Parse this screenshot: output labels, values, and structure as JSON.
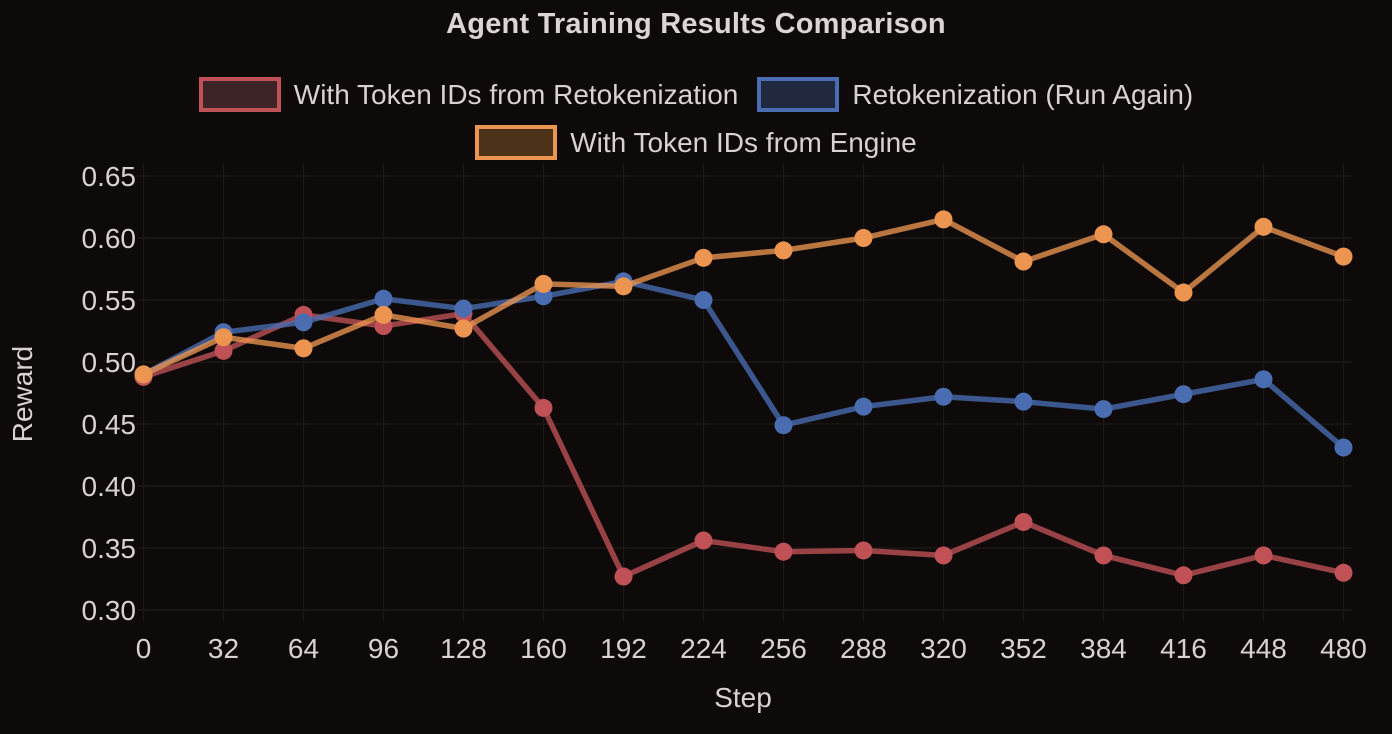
{
  "colors": {
    "background": "#0d0a09",
    "text": "#d8d2d1",
    "grid": "#1b1815",
    "red": "#c05257",
    "blue": "#4a6db2",
    "orange": "#ec9550"
  },
  "chart_data": {
    "type": "line",
    "title": "Agent Training Results Comparison",
    "xlabel": "Step",
    "ylabel": "Reward",
    "grid": true,
    "legend_position": "top",
    "xlim": [
      -8,
      492
    ],
    "ylim": [
      0.29,
      0.66
    ],
    "x": [
      0,
      32,
      64,
      96,
      128,
      160,
      192,
      224,
      256,
      288,
      320,
      352,
      384,
      416,
      448,
      480
    ],
    "y_ticks": [
      0.65,
      0.6,
      0.55,
      0.5,
      0.45,
      0.4,
      0.35,
      0.3
    ],
    "series": [
      {
        "name": "With Token IDs from Retokenization",
        "color": "#c05257",
        "swatch_fill": "#3f2427",
        "values": [
          0.488,
          0.509,
          0.538,
          0.529,
          0.539,
          0.463,
          0.327,
          0.356,
          0.347,
          0.348,
          0.344,
          0.371,
          0.344,
          0.328,
          0.344,
          0.33
        ]
      },
      {
        "name": "Retokenization (Run Again)",
        "color": "#4a6db2",
        "swatch_fill": "#20293f",
        "values": [
          0.49,
          0.524,
          0.532,
          0.551,
          0.543,
          0.553,
          0.565,
          0.55,
          0.449,
          0.464,
          0.472,
          0.468,
          0.462,
          0.474,
          0.486,
          0.431
        ]
      },
      {
        "name": "With Token IDs from Engine",
        "color": "#ec9550",
        "swatch_fill": "#4d321a",
        "values": [
          0.49,
          0.52,
          0.511,
          0.538,
          0.527,
          0.563,
          0.561,
          0.584,
          0.59,
          0.6,
          0.615,
          0.581,
          0.603,
          0.556,
          0.609,
          0.585
        ]
      }
    ]
  }
}
